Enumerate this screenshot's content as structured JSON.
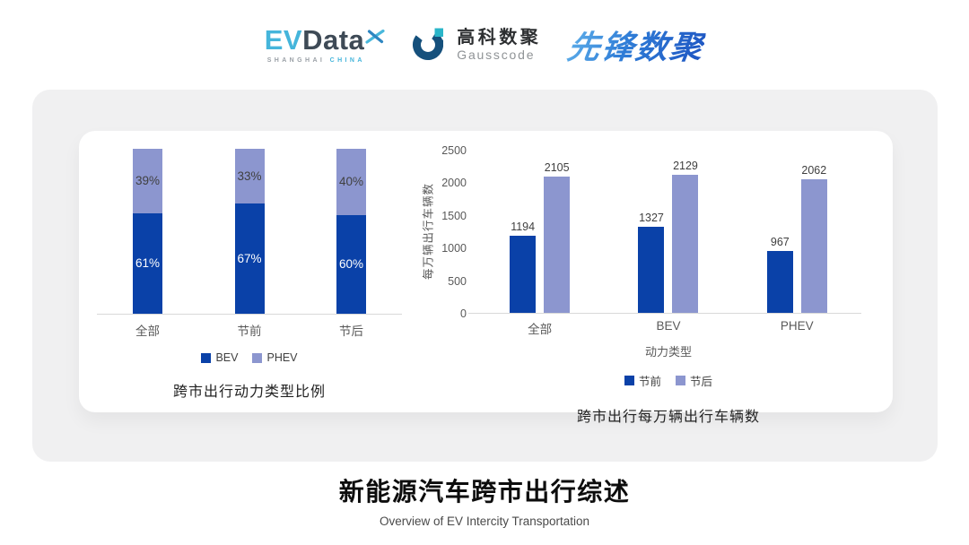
{
  "header": {
    "logos": {
      "evdata": {
        "part1": "EV",
        "part2": "Data",
        "sub1": "SHANGHAI",
        "sub2": "CHINA"
      },
      "gausscode": {
        "cn": "高科数聚",
        "en": "Gausscode"
      },
      "pioneer": {
        "text": "先锋数聚"
      }
    }
  },
  "colors": {
    "primary": "#0A41A8",
    "secondary": "#8C96CF",
    "axis": "#D9D9D9",
    "panel_bg": "#F0F0F1",
    "evdata_cyan": "#45B5DB",
    "evdata_slate": "#3E4A56",
    "gauss_dark": "#15507C",
    "gauss_teal": "#2AB5C9",
    "pioneer_blue_light": "#5FB0EA",
    "pioneer_blue_dark": "#1E55C2"
  },
  "chart_data": [
    {
      "type": "bar",
      "variant": "stacked-100",
      "title": "跨市出行动力类型比例",
      "categories": [
        "全部",
        "节前",
        "节后"
      ],
      "series": [
        {
          "name": "BEV",
          "values": [
            61,
            67,
            60
          ],
          "color": "#0A41A8"
        },
        {
          "name": "PHEV",
          "values": [
            39,
            33,
            40
          ],
          "color": "#8C96CF"
        }
      ],
      "unit": "%",
      "legend": [
        "BEV",
        "PHEV"
      ],
      "legend_position": "bottom",
      "grid": false,
      "ylim": [
        0,
        100
      ]
    },
    {
      "type": "bar",
      "variant": "grouped",
      "title": "跨市出行每万辆出行车辆数",
      "categories": [
        "全部",
        "BEV",
        "PHEV"
      ],
      "series": [
        {
          "name": "节前",
          "values": [
            1194,
            1327,
            967
          ],
          "color": "#0A41A8"
        },
        {
          "name": "节后",
          "values": [
            2105,
            2129,
            2062
          ],
          "color": "#8C96CF"
        }
      ],
      "xlabel": "动力类型",
      "ylabel": "每万辆出行车辆数",
      "ylim": [
        0,
        2500
      ],
      "yticks": [
        0,
        500,
        1000,
        1500,
        2000,
        2500
      ],
      "legend": [
        "节前",
        "节后"
      ],
      "legend_position": "bottom",
      "grid": false,
      "value_labels": true
    }
  ],
  "footer": {
    "title": "新能源汽车跨市出行综述",
    "subtitle": "Overview of EV Intercity Transportation"
  }
}
